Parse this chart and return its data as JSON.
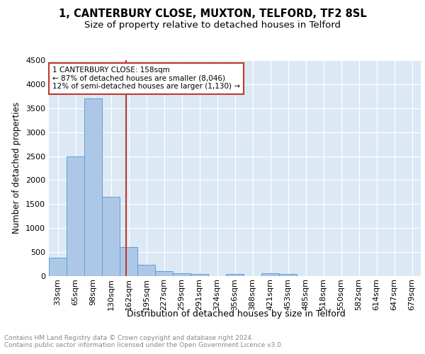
{
  "title1": "1, CANTERBURY CLOSE, MUXTON, TELFORD, TF2 8SL",
  "title2": "Size of property relative to detached houses in Telford",
  "xlabel": "Distribution of detached houses by size in Telford",
  "ylabel": "Number of detached properties",
  "bar_labels": [
    "33sqm",
    "65sqm",
    "98sqm",
    "130sqm",
    "162sqm",
    "195sqm",
    "227sqm",
    "259sqm",
    "291sqm",
    "324sqm",
    "356sqm",
    "388sqm",
    "421sqm",
    "453sqm",
    "485sqm",
    "518sqm",
    "550sqm",
    "582sqm",
    "614sqm",
    "647sqm",
    "679sqm"
  ],
  "bar_values": [
    380,
    2500,
    3700,
    1650,
    600,
    240,
    110,
    60,
    50,
    0,
    50,
    0,
    60,
    50,
    0,
    0,
    0,
    0,
    0,
    0,
    0
  ],
  "bar_color": "#adc8e6",
  "bar_edge_color": "#5a9fd4",
  "vline_x_index": 3.875,
  "vline_color": "#c0392b",
  "annotation_line1": "1 CANTERBURY CLOSE: 158sqm",
  "annotation_line2": "← 87% of detached houses are smaller (8,046)",
  "annotation_line3": "12% of semi-detached houses are larger (1,130) →",
  "annotation_box_color": "#ffffff",
  "annotation_box_edge": "#c0392b",
  "plot_bg_color": "#dce9f5",
  "grid_color": "#ffffff",
  "ylim": [
    0,
    4500
  ],
  "yticks": [
    0,
    500,
    1000,
    1500,
    2000,
    2500,
    3000,
    3500,
    4000,
    4500
  ],
  "footer_text": "Contains HM Land Registry data © Crown copyright and database right 2024.\nContains public sector information licensed under the Open Government Licence v3.0.",
  "title1_fontsize": 10.5,
  "title2_fontsize": 9.5,
  "xlabel_fontsize": 9,
  "ylabel_fontsize": 8.5,
  "tick_fontsize": 8,
  "annotation_fontsize": 7.5,
  "footer_fontsize": 6.5
}
